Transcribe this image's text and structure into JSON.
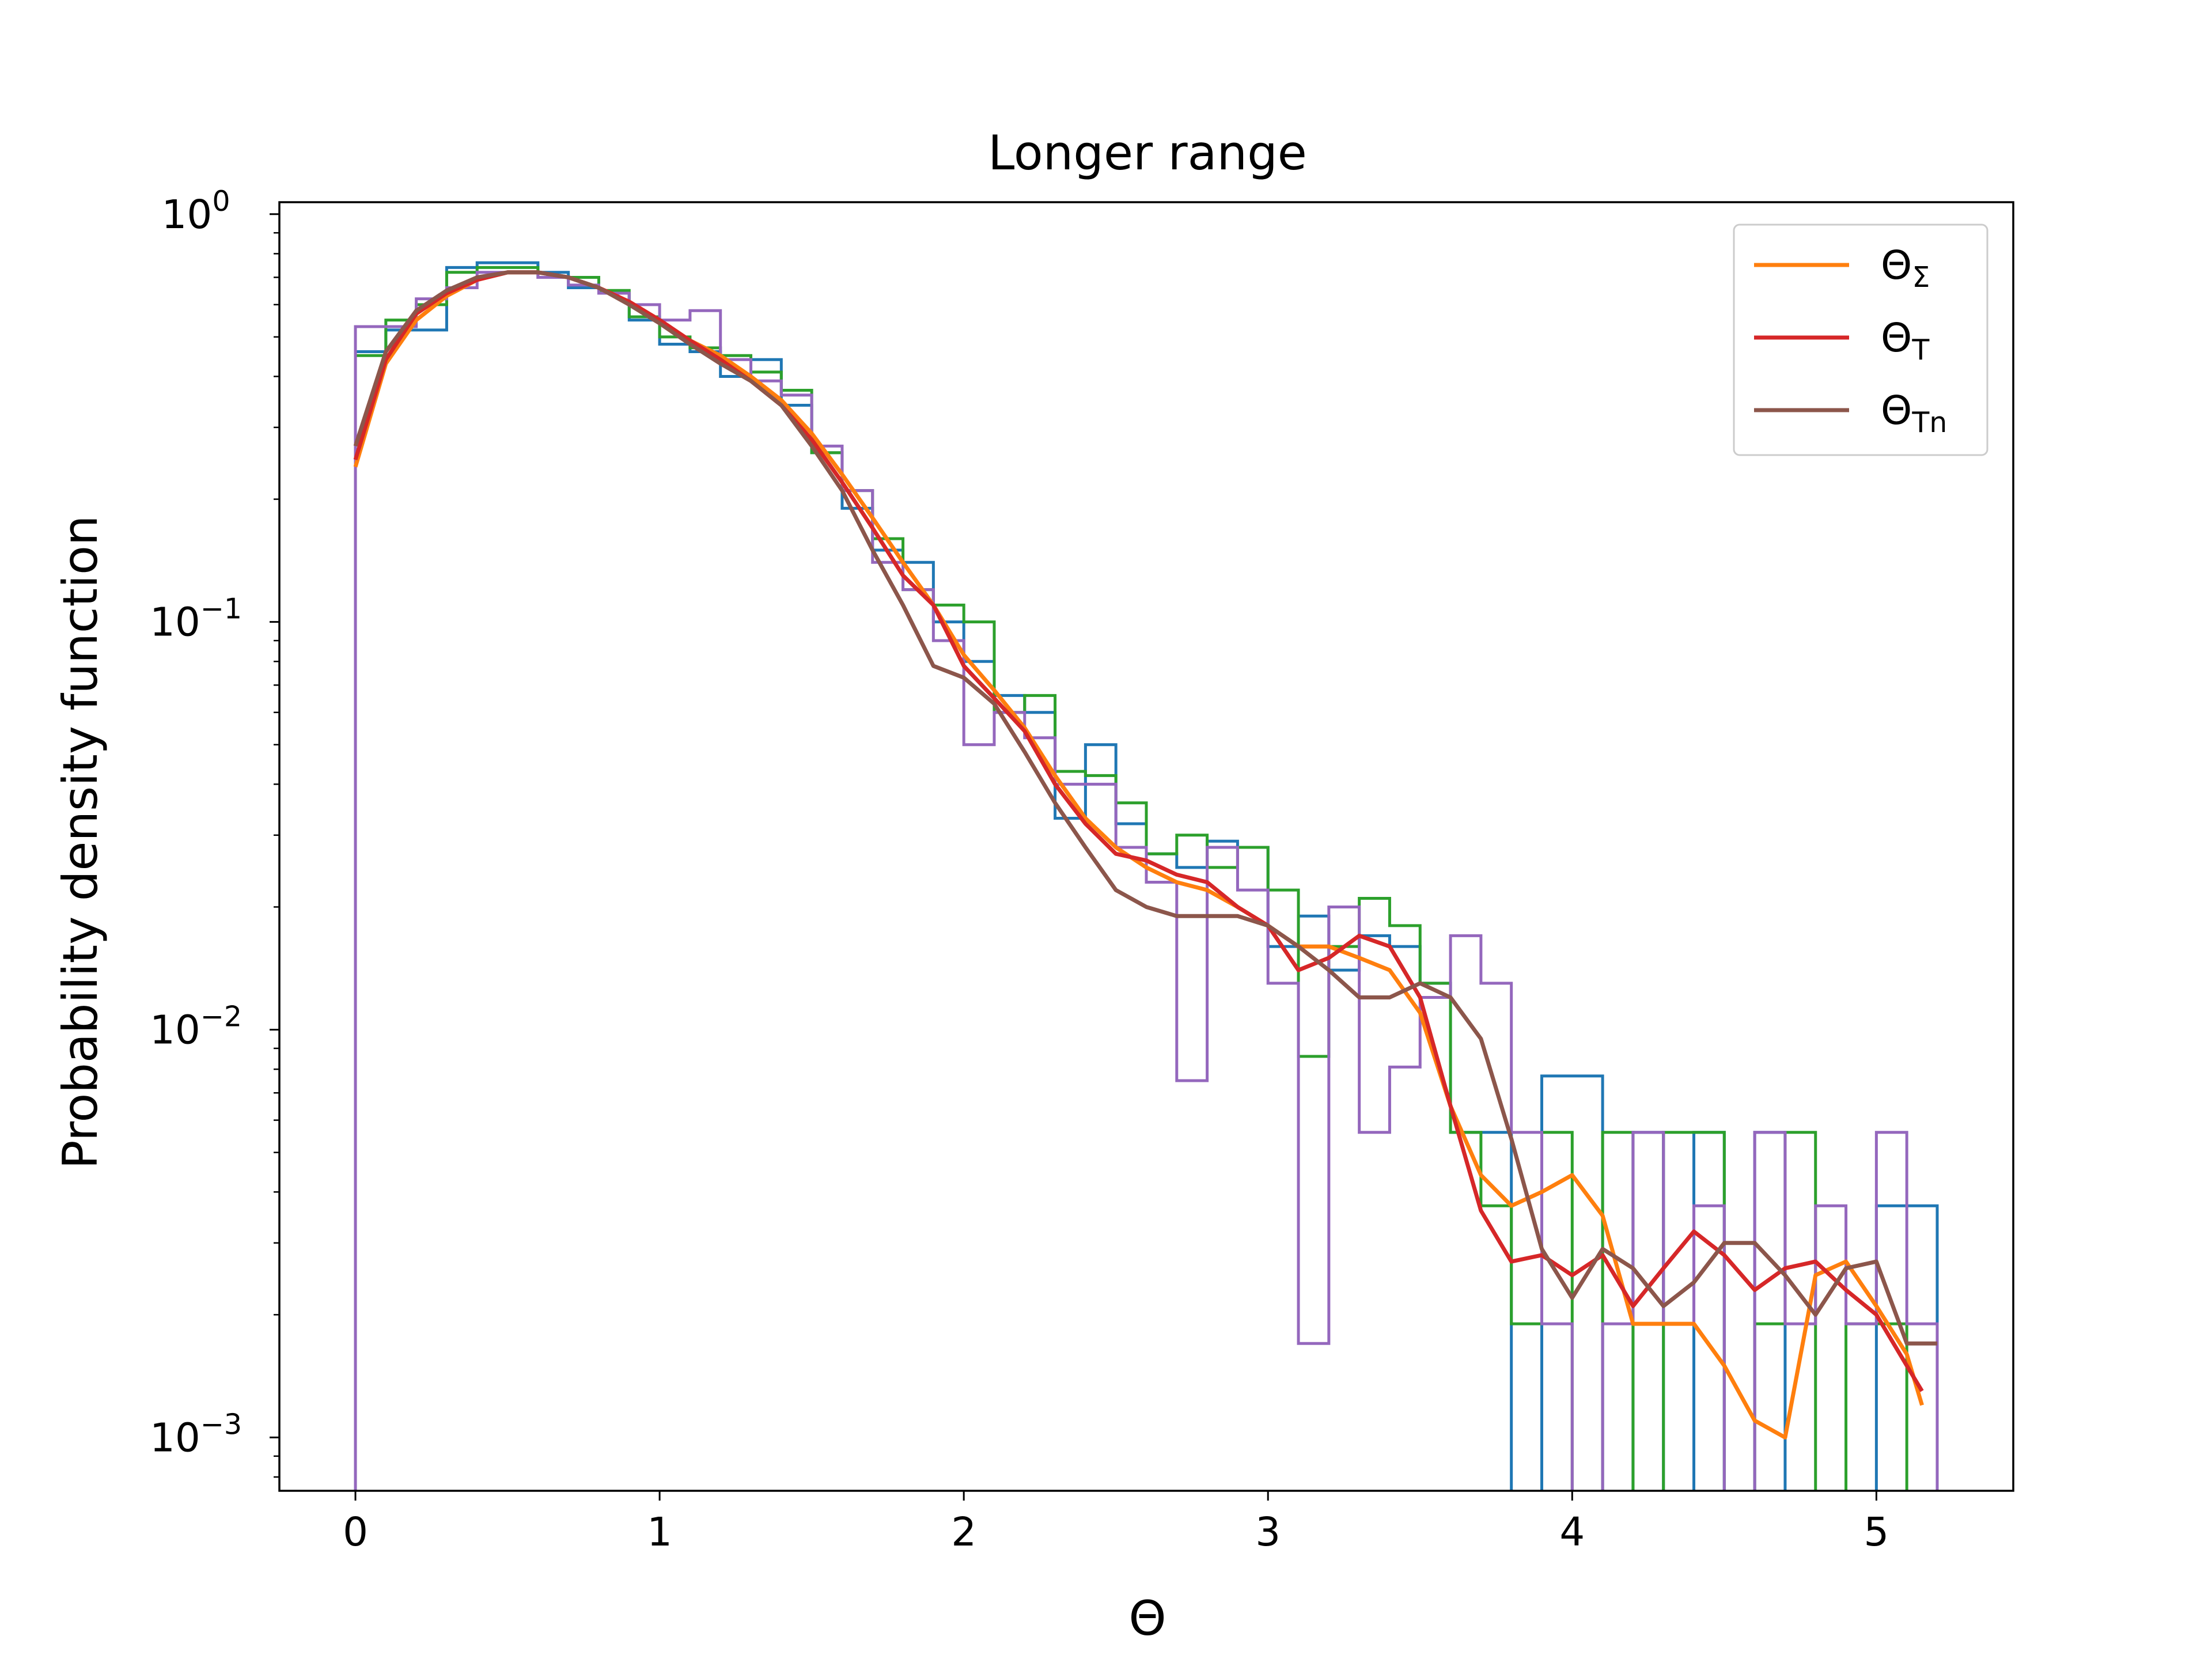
{
  "chart_data": {
    "type": "line",
    "title": "Longer range",
    "xlabel": "Θ",
    "ylabel": "Probability density function",
    "xlim": [
      -0.25,
      5.45
    ],
    "ylim": [
      0.00074,
      1.07
    ],
    "yscale": "log",
    "grid": false,
    "legend_position": "upper right",
    "x_ticks": [
      {
        "value": 0,
        "label": "0"
      },
      {
        "value": 1,
        "label": "1"
      },
      {
        "value": 2,
        "label": "2"
      },
      {
        "value": 3,
        "label": "3"
      },
      {
        "value": 4,
        "label": "4"
      },
      {
        "value": 5,
        "label": "5"
      }
    ],
    "y_ticks": [
      {
        "value": 1,
        "base": "10",
        "exp": "0"
      },
      {
        "value": 0.1,
        "base": "10",
        "exp": "−1"
      },
      {
        "value": 0.01,
        "base": "10",
        "exp": "−2"
      },
      {
        "value": 0.001,
        "base": "10",
        "exp": "−3"
      }
    ],
    "histograms": [
      {
        "color": "#1f77b4",
        "edges": [
          0,
          0.1,
          0.2,
          0.3,
          0.4,
          0.5,
          0.6,
          0.7,
          0.8,
          0.9,
          1.0,
          1.1,
          1.2,
          1.3,
          1.4,
          1.5,
          1.6,
          1.7,
          1.8,
          1.9,
          2.0,
          2.1,
          2.2,
          2.3,
          2.4,
          2.5,
          2.6,
          2.7,
          2.8,
          2.9,
          3.0,
          3.1,
          3.2,
          3.3,
          3.4,
          3.5,
          3.6,
          3.7,
          3.8,
          3.9,
          4.0,
          4.1,
          4.2,
          4.3,
          4.4,
          4.5,
          4.6,
          4.7,
          4.8,
          4.9,
          5.0,
          5.1,
          5.2
        ],
        "values": [
          0.46,
          0.52,
          0.52,
          0.74,
          0.76,
          0.76,
          0.72,
          0.66,
          0.64,
          0.55,
          0.48,
          0.46,
          0.4,
          0.44,
          0.34,
          0.26,
          0.19,
          0.15,
          0.14,
          0.1,
          0.08,
          0.066,
          0.06,
          0.033,
          0.05,
          0.032,
          0.027,
          0.025,
          0.029,
          0.028,
          0.016,
          0.019,
          0.014,
          0.017,
          0.016,
          0.013,
          0.0056,
          0.0056,
          0.0001,
          0.0077,
          0.0077,
          0.0001,
          0.0056,
          0.0001,
          0.0056,
          0.0001,
          0.0056,
          0.0001,
          0.0001,
          0.0001,
          0.0037,
          0.0037,
          0.0001
        ]
      },
      {
        "color": "#2ca02c",
        "edges": [
          0,
          0.1,
          0.2,
          0.3,
          0.4,
          0.5,
          0.6,
          0.7,
          0.8,
          0.9,
          1.0,
          1.1,
          1.2,
          1.3,
          1.4,
          1.5,
          1.6,
          1.7,
          1.8,
          1.9,
          2.0,
          2.1,
          2.2,
          2.3,
          2.4,
          2.5,
          2.6,
          2.7,
          2.8,
          2.9,
          3.0,
          3.1,
          3.2,
          3.3,
          3.4,
          3.5,
          3.6,
          3.7,
          3.8,
          3.9,
          4.0,
          4.1,
          4.2,
          4.3,
          4.4,
          4.5,
          4.6,
          4.7,
          4.8,
          4.9,
          5.0,
          5.1,
          5.2
        ],
        "values": [
          0.45,
          0.55,
          0.6,
          0.72,
          0.74,
          0.74,
          0.7,
          0.7,
          0.65,
          0.56,
          0.5,
          0.47,
          0.45,
          0.41,
          0.37,
          0.26,
          0.21,
          0.16,
          0.12,
          0.11,
          0.1,
          0.06,
          0.066,
          0.043,
          0.042,
          0.036,
          0.027,
          0.03,
          0.025,
          0.028,
          0.022,
          0.0086,
          0.016,
          0.021,
          0.018,
          0.013,
          0.0056,
          0.0037,
          0.0019,
          0.0056,
          0.0001,
          0.0056,
          0.0001,
          0.0056,
          0.0056,
          0.0001,
          0.0019,
          0.0056,
          0.0001,
          0.0019,
          0.0019,
          0.0001,
          0.0001
        ]
      },
      {
        "color": "#9467bd",
        "edges": [
          0,
          0.1,
          0.2,
          0.3,
          0.4,
          0.5,
          0.6,
          0.7,
          0.8,
          0.9,
          1.0,
          1.1,
          1.2,
          1.3,
          1.4,
          1.5,
          1.6,
          1.7,
          1.8,
          1.9,
          2.0,
          2.1,
          2.2,
          2.3,
          2.4,
          2.5,
          2.6,
          2.7,
          2.8,
          2.9,
          3.0,
          3.1,
          3.2,
          3.3,
          3.4,
          3.5,
          3.6,
          3.7,
          3.8,
          3.9,
          4.0,
          4.1,
          4.2,
          4.3,
          4.4,
          4.5,
          4.6,
          4.7,
          4.8,
          4.9,
          5.0,
          5.1,
          5.2
        ],
        "values": [
          0.53,
          0.53,
          0.62,
          0.66,
          0.72,
          0.72,
          0.7,
          0.67,
          0.64,
          0.6,
          0.55,
          0.58,
          0.44,
          0.39,
          0.36,
          0.27,
          0.21,
          0.14,
          0.12,
          0.09,
          0.05,
          0.06,
          0.052,
          0.04,
          0.04,
          0.028,
          0.023,
          0.0075,
          0.028,
          0.022,
          0.013,
          0.0017,
          0.02,
          0.0056,
          0.0081,
          0.012,
          0.017,
          0.013,
          0.0056,
          0.0019,
          0.0001,
          0.0019,
          0.0056,
          0.0019,
          0.0037,
          0.0001,
          0.0056,
          0.0019,
          0.0037,
          0.0019,
          0.0056,
          0.0019,
          0.0001
        ]
      }
    ],
    "series": [
      {
        "name": "Θ_Σ",
        "legend_main": "Θ",
        "legend_sub": "Σ",
        "color": "#ff7f0e",
        "x": [
          0,
          0.1,
          0.2,
          0.3,
          0.4,
          0.5,
          0.6,
          0.7,
          0.8,
          0.9,
          1.0,
          1.1,
          1.2,
          1.3,
          1.4,
          1.5,
          1.6,
          1.7,
          1.8,
          1.9,
          2.0,
          2.1,
          2.2,
          2.3,
          2.4,
          2.5,
          2.6,
          2.7,
          2.8,
          2.9,
          3.0,
          3.1,
          3.2,
          3.3,
          3.4,
          3.5,
          3.6,
          3.7,
          3.8,
          3.9,
          4.0,
          4.1,
          4.2,
          4.3,
          4.4,
          4.5,
          4.6,
          4.7,
          4.8,
          4.9,
          5.0,
          5.1,
          5.15
        ],
        "values": [
          0.24,
          0.43,
          0.55,
          0.63,
          0.69,
          0.72,
          0.72,
          0.7,
          0.66,
          0.61,
          0.55,
          0.49,
          0.45,
          0.4,
          0.35,
          0.29,
          0.23,
          0.18,
          0.14,
          0.11,
          0.083,
          0.068,
          0.055,
          0.042,
          0.033,
          0.028,
          0.025,
          0.023,
          0.022,
          0.02,
          0.018,
          0.016,
          0.016,
          0.015,
          0.014,
          0.011,
          0.0065,
          0.0044,
          0.0037,
          0.004,
          0.0044,
          0.0035,
          0.0019,
          0.0019,
          0.0019,
          0.0015,
          0.0011,
          0.001,
          0.0025,
          0.0027,
          0.0021,
          0.0016,
          0.0012
        ]
      },
      {
        "name": "Θ_T",
        "legend_main": "Θ",
        "legend_sub": "T",
        "color": "#d62728",
        "x": [
          0,
          0.1,
          0.2,
          0.3,
          0.4,
          0.5,
          0.6,
          0.7,
          0.8,
          0.9,
          1.0,
          1.1,
          1.2,
          1.3,
          1.4,
          1.5,
          1.6,
          1.7,
          1.8,
          1.9,
          2.0,
          2.1,
          2.2,
          2.3,
          2.4,
          2.5,
          2.6,
          2.7,
          2.8,
          2.9,
          3.0,
          3.1,
          3.2,
          3.3,
          3.4,
          3.5,
          3.6,
          3.7,
          3.8,
          3.9,
          4.0,
          4.1,
          4.2,
          4.3,
          4.4,
          4.5,
          4.6,
          4.7,
          4.8,
          4.9,
          5.0,
          5.1,
          5.15
        ],
        "values": [
          0.25,
          0.44,
          0.57,
          0.64,
          0.69,
          0.72,
          0.72,
          0.7,
          0.66,
          0.61,
          0.55,
          0.49,
          0.44,
          0.39,
          0.34,
          0.28,
          0.22,
          0.17,
          0.13,
          0.11,
          0.078,
          0.065,
          0.054,
          0.04,
          0.032,
          0.027,
          0.026,
          0.024,
          0.023,
          0.02,
          0.018,
          0.014,
          0.015,
          0.017,
          0.016,
          0.012,
          0.0065,
          0.0036,
          0.0027,
          0.0028,
          0.0025,
          0.0028,
          0.0021,
          0.0026,
          0.0032,
          0.0028,
          0.0023,
          0.0026,
          0.0027,
          0.0023,
          0.002,
          0.0015,
          0.0013
        ]
      },
      {
        "name": "Θ_Tn",
        "legend_main": "Θ",
        "legend_sub": "Tn",
        "color": "#8c564b",
        "x": [
          0,
          0.1,
          0.2,
          0.3,
          0.4,
          0.5,
          0.6,
          0.7,
          0.8,
          0.9,
          1.0,
          1.1,
          1.2,
          1.3,
          1.4,
          1.5,
          1.6,
          1.7,
          1.8,
          1.9,
          2.0,
          2.1,
          2.2,
          2.3,
          2.4,
          2.5,
          2.6,
          2.7,
          2.8,
          2.9,
          3.0,
          3.1,
          3.2,
          3.3,
          3.4,
          3.5,
          3.6,
          3.7,
          3.8,
          3.9,
          4.0,
          4.1,
          4.2,
          4.3,
          4.4,
          4.5,
          4.6,
          4.7,
          4.8,
          4.9,
          5.0,
          5.1,
          5.2
        ],
        "values": [
          0.27,
          0.46,
          0.58,
          0.65,
          0.7,
          0.72,
          0.72,
          0.7,
          0.66,
          0.6,
          0.54,
          0.48,
          0.43,
          0.39,
          0.34,
          0.27,
          0.21,
          0.15,
          0.11,
          0.078,
          0.073,
          0.063,
          0.048,
          0.036,
          0.028,
          0.022,
          0.02,
          0.019,
          0.019,
          0.019,
          0.018,
          0.016,
          0.014,
          0.012,
          0.012,
          0.013,
          0.012,
          0.0095,
          0.0054,
          0.0029,
          0.0022,
          0.0029,
          0.0026,
          0.0021,
          0.0024,
          0.003,
          0.003,
          0.0025,
          0.002,
          0.0026,
          0.0027,
          0.0017,
          0.0017
        ]
      }
    ]
  }
}
